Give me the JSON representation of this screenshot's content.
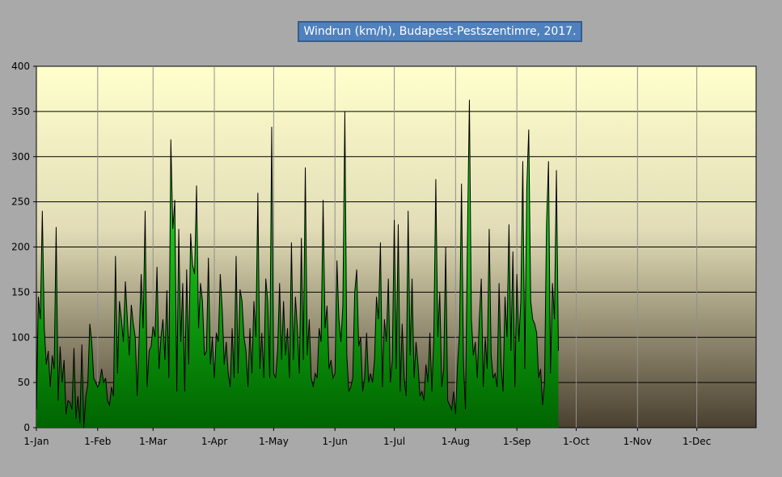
{
  "chart_data": {
    "type": "area",
    "title": "Windrun (km/h), Budapest-Pestszentimre, 2017.",
    "xlabel": "",
    "ylabel": "",
    "ylim": [
      0,
      400
    ],
    "yticks": [
      0,
      50,
      100,
      150,
      200,
      250,
      300,
      350,
      400
    ],
    "xlim": [
      "2017-01-01",
      "2017-12-31"
    ],
    "xticks": [
      {
        "date": "2017-01-01",
        "label": "1-Jan"
      },
      {
        "date": "2017-02-01",
        "label": "1-Feb"
      },
      {
        "date": "2017-03-01",
        "label": "1-Mar"
      },
      {
        "date": "2017-04-01",
        "label": "1-Apr"
      },
      {
        "date": "2017-05-01",
        "label": "1-May"
      },
      {
        "date": "2017-06-01",
        "label": "1-Jun"
      },
      {
        "date": "2017-07-01",
        "label": "1-Jul"
      },
      {
        "date": "2017-08-01",
        "label": "1-Aug"
      },
      {
        "date": "2017-09-01",
        "label": "1-Sep"
      },
      {
        "date": "2017-10-01",
        "label": "1-Oct"
      },
      {
        "date": "2017-11-01",
        "label": "1-Nov"
      },
      {
        "date": "2017-12-01",
        "label": "1-Dec"
      }
    ],
    "grid": true,
    "series": [
      {
        "start_date": "2017-01-01",
        "values": [
          20,
          145,
          120,
          240,
          110,
          70,
          85,
          45,
          80,
          65,
          222,
          30,
          90,
          50,
          75,
          15,
          30,
          28,
          20,
          88,
          10,
          35,
          5,
          92,
          0,
          35,
          48,
          115,
          95,
          55,
          50,
          45,
          50,
          65,
          50,
          55,
          30,
          25,
          45,
          35,
          190,
          60,
          140,
          120,
          95,
          162,
          120,
          80,
          136,
          115,
          100,
          35,
          100,
          170,
          110,
          240,
          45,
          85,
          90,
          112,
          100,
          178,
          65,
          100,
          120,
          75,
          152,
          55,
          319,
          220,
          252,
          40,
          220,
          95,
          160,
          40,
          175,
          70,
          215,
          180,
          170,
          268,
          110,
          160,
          140,
          80,
          85,
          188,
          70,
          100,
          55,
          105,
          95,
          170,
          130,
          70,
          95,
          60,
          45,
          110,
          55,
          190,
          60,
          153,
          140,
          100,
          85,
          45,
          110,
          60,
          140,
          100,
          260,
          65,
          105,
          55,
          165,
          140,
          55,
          333,
          60,
          55,
          85,
          160,
          75,
          140,
          80,
          110,
          55,
          205,
          75,
          145,
          110,
          60,
          210,
          75,
          288,
          80,
          120,
          55,
          45,
          60,
          55,
          110,
          95,
          252,
          110,
          135,
          65,
          75,
          55,
          60,
          185,
          120,
          95,
          135,
          350,
          80,
          40,
          45,
          55,
          150,
          175,
          90,
          100,
          40,
          55,
          105,
          50,
          60,
          50,
          75,
          145,
          120,
          205,
          45,
          120,
          95,
          165,
          50,
          75,
          230,
          65,
          225,
          40,
          115,
          55,
          35,
          240,
          80,
          165,
          55,
          95,
          70,
          35,
          40,
          30,
          70,
          50,
          105,
          40,
          100,
          275,
          100,
          150,
          45,
          65,
          200,
          30,
          25,
          20,
          40,
          15,
          70,
          105,
          270,
          70,
          20,
          210,
          363,
          120,
          80,
          95,
          55,
          120,
          165,
          45,
          100,
          65,
          220,
          80,
          55,
          60,
          45,
          160,
          70,
          40,
          145,
          100,
          225,
          85,
          195,
          45,
          170,
          95,
          140,
          295,
          65,
          265,
          330,
          140,
          120,
          115,
          105,
          55,
          65,
          25,
          50,
          225,
          295,
          60,
          160,
          120,
          285,
          85
        ]
      }
    ]
  }
}
